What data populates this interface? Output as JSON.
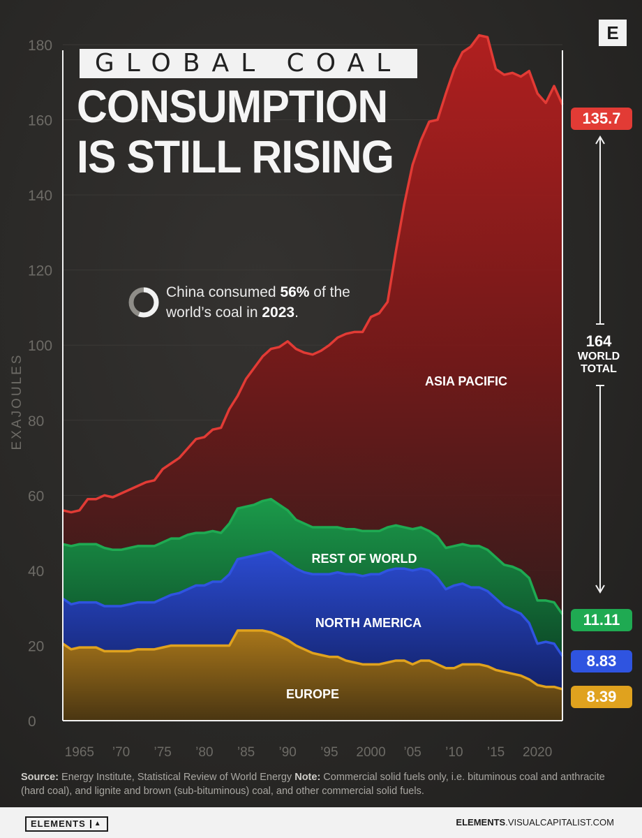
{
  "brand": {
    "logo_letter": "E"
  },
  "title": {
    "kicker": "GLOBAL COAL",
    "line1": "CONSUMPTION",
    "line2": "IS STILL RISING"
  },
  "callout": {
    "part1": "China consumed ",
    "pct": "56%",
    "part2": " of the world’s coal in ",
    "year": "2023",
    "part3": ".",
    "china_share": 0.56
  },
  "badges": {
    "asia_pacific": "135.7",
    "rest_of_world": "11.11",
    "north_america": "8.83",
    "europe": "8.39"
  },
  "world_total": {
    "value": "164",
    "label_line1": "WORLD",
    "label_line2": "TOTAL"
  },
  "source": {
    "source_label": "Source:",
    "source_text": " Energy Institute, Statistical Review of World Energy ",
    "note_label": "Note:",
    "note_text": " Commercial solid fuels only, i.e. bituminous coal and anthracite (hard coal), and lignite and brown (sub-bituminous) coal, and other commercial solid fuels."
  },
  "footer": {
    "logo_text": "ELEMENTS",
    "url_bold": "ELEMENTS",
    "url_rest": ".VISUALCAPITALIST.COM"
  },
  "colors": {
    "europe": "#e0a21e",
    "north_america": "#2f54e0",
    "rest_of_world": "#1faa52",
    "asia_pacific": "#e23b35",
    "background": "#2a2927"
  },
  "chart_data": {
    "type": "area",
    "stacked": true,
    "ylabel": "EXAJOULES",
    "ylim": [
      0,
      180
    ],
    "yticks": [
      0,
      20,
      40,
      60,
      80,
      100,
      120,
      140,
      160,
      180
    ],
    "xticks": [
      {
        "x": 1965,
        "label": "1965"
      },
      {
        "x": 1970,
        "label": "’70"
      },
      {
        "x": 1975,
        "label": "’75"
      },
      {
        "x": 1980,
        "label": "’80"
      },
      {
        "x": 1985,
        "label": "’85"
      },
      {
        "x": 1990,
        "label": "’90"
      },
      {
        "x": 1995,
        "label": "’95"
      },
      {
        "x": 2000,
        "label": "2000"
      },
      {
        "x": 2005,
        "label": "’05"
      },
      {
        "x": 2010,
        "label": "’10"
      },
      {
        "x": 2015,
        "label": "’15"
      },
      {
        "x": 2020,
        "label": "2020"
      }
    ],
    "x": [
      1963,
      1964,
      1965,
      1966,
      1967,
      1968,
      1969,
      1970,
      1971,
      1972,
      1973,
      1974,
      1975,
      1976,
      1977,
      1978,
      1979,
      1980,
      1981,
      1982,
      1983,
      1984,
      1985,
      1986,
      1987,
      1988,
      1989,
      1990,
      1991,
      1992,
      1993,
      1994,
      1995,
      1996,
      1997,
      1998,
      1999,
      2000,
      2001,
      2002,
      2003,
      2004,
      2005,
      2006,
      2007,
      2008,
      2009,
      2010,
      2011,
      2012,
      2013,
      2014,
      2015,
      2016,
      2017,
      2018,
      2019,
      2020,
      2021,
      2022,
      2023
    ],
    "series": [
      {
        "name": "EUROPE",
        "values": [
          20.5,
          19.0,
          19.5,
          19.5,
          19.5,
          18.5,
          18.5,
          18.5,
          18.5,
          19.0,
          19.0,
          19.0,
          19.5,
          20.0,
          20.0,
          20.0,
          20.0,
          20.0,
          20.0,
          20.0,
          20.0,
          24.0,
          24.0,
          24.0,
          24.0,
          23.5,
          22.5,
          21.5,
          20.0,
          19.0,
          18.0,
          17.5,
          17.0,
          17.0,
          16.0,
          15.5,
          15.0,
          15.0,
          15.0,
          15.5,
          16.0,
          16.0,
          15.0,
          16.0,
          16.0,
          15.0,
          14.0,
          14.0,
          15.0,
          15.0,
          15.0,
          14.5,
          13.5,
          13.0,
          12.5,
          12.0,
          11.0,
          9.5,
          9.0,
          9.0,
          8.39
        ]
      },
      {
        "name": "NORTH AMERICA",
        "values": [
          12.0,
          12.0,
          12.0,
          12.0,
          12.0,
          12.0,
          12.0,
          12.0,
          12.5,
          12.5,
          12.5,
          12.5,
          13.0,
          13.5,
          14.0,
          15.0,
          16.0,
          16.0,
          17.0,
          17.0,
          19.0,
          19.0,
          19.5,
          20.0,
          20.5,
          21.5,
          21.0,
          20.5,
          20.5,
          20.5,
          21.0,
          21.5,
          22.0,
          22.5,
          23.0,
          23.5,
          23.5,
          24.0,
          24.0,
          24.5,
          24.5,
          24.5,
          25.0,
          24.5,
          24.0,
          23.0,
          21.0,
          22.0,
          21.5,
          20.5,
          20.5,
          20.0,
          19.0,
          17.5,
          17.0,
          16.5,
          15.0,
          11.0,
          12.0,
          11.5,
          8.83
        ]
      },
      {
        "name": "REST OF WORLD",
        "values": [
          14.5,
          15.5,
          15.5,
          15.5,
          15.5,
          15.5,
          15.0,
          15.0,
          15.0,
          15.0,
          15.0,
          15.0,
          15.0,
          15.0,
          14.5,
          14.5,
          14.0,
          14.0,
          13.5,
          13.0,
          13.5,
          13.5,
          13.5,
          13.5,
          14.0,
          14.0,
          14.0,
          14.0,
          13.0,
          13.0,
          12.5,
          12.5,
          12.5,
          12.0,
          12.0,
          12.0,
          12.0,
          11.5,
          11.5,
          11.5,
          11.5,
          11.0,
          11.0,
          11.0,
          10.5,
          11.0,
          11.0,
          10.5,
          10.5,
          11.0,
          11.0,
          11.0,
          11.0,
          11.0,
          11.5,
          11.5,
          12.0,
          11.5,
          11.0,
          11.0,
          11.11
        ]
      },
      {
        "name": "ASIA PACIFIC",
        "values": [
          9.0,
          9.0,
          9.0,
          12.0,
          12.0,
          14.0,
          14.0,
          15.0,
          15.5,
          16.0,
          17.0,
          17.5,
          19.5,
          20.0,
          21.5,
          23.0,
          25.0,
          25.5,
          27.0,
          28.0,
          30.5,
          30.0,
          34.0,
          36.5,
          38.5,
          40.0,
          42.0,
          45.0,
          45.5,
          45.5,
          46.0,
          47.0,
          48.5,
          50.5,
          52.0,
          52.5,
          53.0,
          57.0,
          58.0,
          60.0,
          73.0,
          86.0,
          97.0,
          103.0,
          109.0,
          111.0,
          121.0,
          127.0,
          131.0,
          133.0,
          136.0,
          136.5,
          130.0,
          130.5,
          131.5,
          131.5,
          135.0,
          135.0,
          132.5,
          137.5,
          135.7
        ]
      }
    ],
    "annotations": [
      "ASIA PACIFIC",
      "REST OF WORLD",
      "NORTH AMERICA",
      "EUROPE"
    ]
  }
}
